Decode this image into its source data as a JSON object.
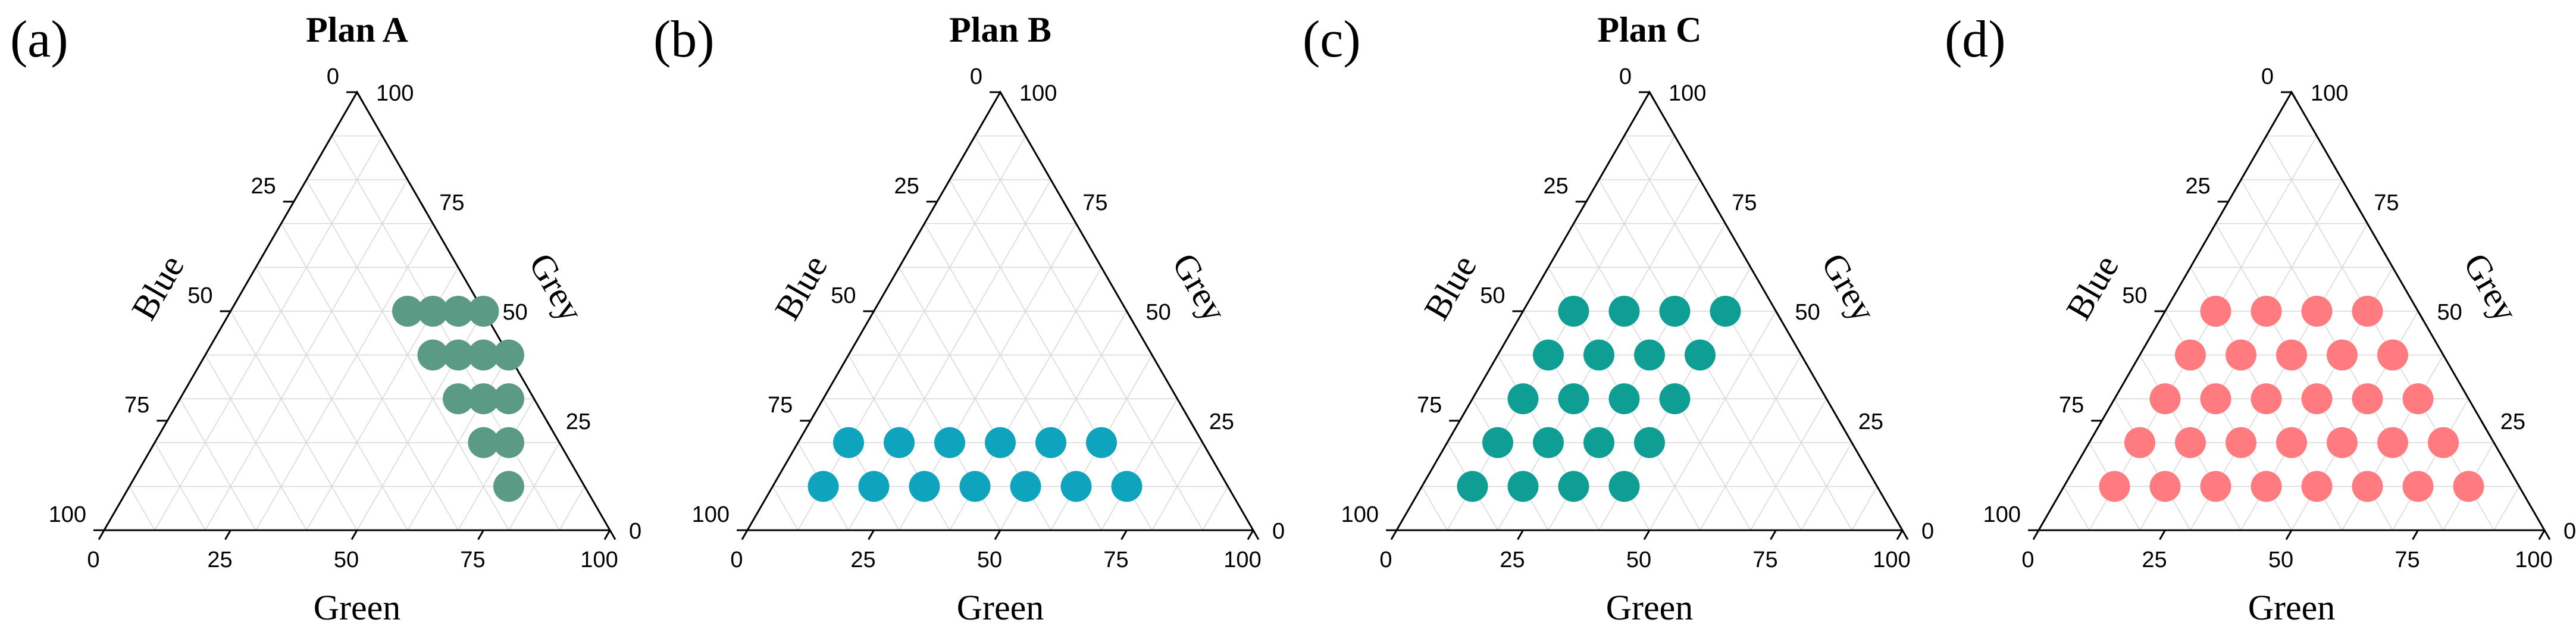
{
  "chart_data": [
    {
      "type": "scatter",
      "subtype": "ternary",
      "panel_label": "(a)",
      "title": "Plan A",
      "axes": {
        "bottom": "Green",
        "left": "Blue",
        "right": "Grey"
      },
      "ticks": [
        0,
        25,
        50,
        75,
        100
      ],
      "grid": true,
      "marker_color": "#5B9A85",
      "points": [
        {
          "green": 50,
          "blue": 0,
          "grey": 50
        },
        {
          "green": 60,
          "blue": 0,
          "grey": 40
        },
        {
          "green": 45,
          "blue": 5,
          "grey": 50
        },
        {
          "green": 55,
          "blue": 5,
          "grey": 40
        },
        {
          "green": 65,
          "blue": 5,
          "grey": 30
        },
        {
          "green": 40,
          "blue": 10,
          "grey": 50
        },
        {
          "green": 50,
          "blue": 10,
          "grey": 40
        },
        {
          "green": 60,
          "blue": 10,
          "grey": 30
        },
        {
          "green": 70,
          "blue": 10,
          "grey": 20
        },
        {
          "green": 35,
          "blue": 15,
          "grey": 50
        },
        {
          "green": 45,
          "blue": 15,
          "grey": 40
        },
        {
          "green": 55,
          "blue": 15,
          "grey": 30
        },
        {
          "green": 65,
          "blue": 15,
          "grey": 20
        },
        {
          "green": 75,
          "blue": 15,
          "grey": 10
        }
      ]
    },
    {
      "type": "scatter",
      "subtype": "ternary",
      "panel_label": "(b)",
      "title": "Plan B",
      "axes": {
        "bottom": "Green",
        "left": "Blue",
        "right": "Grey"
      },
      "ticks": [
        0,
        25,
        50,
        75,
        100
      ],
      "grid": true,
      "marker_color": "#0FA4BE",
      "points": [
        {
          "green": 10,
          "blue": 70,
          "grey": 20
        },
        {
          "green": 20,
          "blue": 60,
          "grey": 20
        },
        {
          "green": 30,
          "blue": 50,
          "grey": 20
        },
        {
          "green": 40,
          "blue": 40,
          "grey": 20
        },
        {
          "green": 50,
          "blue": 30,
          "grey": 20
        },
        {
          "green": 60,
          "blue": 20,
          "grey": 20
        },
        {
          "green": 10,
          "blue": 80,
          "grey": 10
        },
        {
          "green": 20,
          "blue": 70,
          "grey": 10
        },
        {
          "green": 30,
          "blue": 60,
          "grey": 10
        },
        {
          "green": 40,
          "blue": 50,
          "grey": 10
        },
        {
          "green": 50,
          "blue": 40,
          "grey": 10
        },
        {
          "green": 60,
          "blue": 30,
          "grey": 10
        },
        {
          "green": 70,
          "blue": 20,
          "grey": 10
        }
      ]
    },
    {
      "type": "scatter",
      "subtype": "ternary",
      "panel_label": "(c)",
      "title": "Plan C",
      "axes": {
        "bottom": "Green",
        "left": "Blue",
        "right": "Grey"
      },
      "ticks": [
        0,
        25,
        50,
        75,
        100
      ],
      "grid": true,
      "marker_color": "#0E9E93",
      "points": [
        {
          "green": 10,
          "blue": 40,
          "grey": 50
        },
        {
          "green": 20,
          "blue": 30,
          "grey": 50
        },
        {
          "green": 30,
          "blue": 20,
          "grey": 50
        },
        {
          "green": 40,
          "blue": 10,
          "grey": 50
        },
        {
          "green": 10,
          "blue": 50,
          "grey": 40
        },
        {
          "green": 20,
          "blue": 40,
          "grey": 40
        },
        {
          "green": 30,
          "blue": 30,
          "grey": 40
        },
        {
          "green": 40,
          "blue": 20,
          "grey": 40
        },
        {
          "green": 10,
          "blue": 60,
          "grey": 30
        },
        {
          "green": 20,
          "blue": 50,
          "grey": 30
        },
        {
          "green": 30,
          "blue": 40,
          "grey": 30
        },
        {
          "green": 40,
          "blue": 30,
          "grey": 30
        },
        {
          "green": 10,
          "blue": 70,
          "grey": 20
        },
        {
          "green": 20,
          "blue": 60,
          "grey": 20
        },
        {
          "green": 30,
          "blue": 50,
          "grey": 20
        },
        {
          "green": 40,
          "blue": 40,
          "grey": 20
        },
        {
          "green": 10,
          "blue": 80,
          "grey": 10
        },
        {
          "green": 20,
          "blue": 70,
          "grey": 10
        },
        {
          "green": 30,
          "blue": 60,
          "grey": 10
        },
        {
          "green": 40,
          "blue": 50,
          "grey": 10
        }
      ]
    },
    {
      "type": "scatter",
      "subtype": "ternary",
      "panel_label": "(d)",
      "title": "",
      "axes": {
        "bottom": "Green",
        "left": "Blue",
        "right": "Grey"
      },
      "ticks": [
        0,
        25,
        50,
        75,
        100
      ],
      "grid": true,
      "marker_color": "#FF7B7F",
      "points": [
        {
          "green": 10,
          "blue": 40,
          "grey": 50
        },
        {
          "green": 20,
          "blue": 30,
          "grey": 50
        },
        {
          "green": 30,
          "blue": 20,
          "grey": 50
        },
        {
          "green": 40,
          "blue": 10,
          "grey": 50
        },
        {
          "green": 10,
          "blue": 50,
          "grey": 40
        },
        {
          "green": 20,
          "blue": 40,
          "grey": 40
        },
        {
          "green": 30,
          "blue": 30,
          "grey": 40
        },
        {
          "green": 40,
          "blue": 20,
          "grey": 40
        },
        {
          "green": 50,
          "blue": 10,
          "grey": 40
        },
        {
          "green": 10,
          "blue": 60,
          "grey": 30
        },
        {
          "green": 20,
          "blue": 50,
          "grey": 30
        },
        {
          "green": 30,
          "blue": 40,
          "grey": 30
        },
        {
          "green": 40,
          "blue": 30,
          "grey": 30
        },
        {
          "green": 50,
          "blue": 20,
          "grey": 30
        },
        {
          "green": 60,
          "blue": 10,
          "grey": 30
        },
        {
          "green": 10,
          "blue": 70,
          "grey": 20
        },
        {
          "green": 20,
          "blue": 60,
          "grey": 20
        },
        {
          "green": 30,
          "blue": 50,
          "grey": 20
        },
        {
          "green": 40,
          "blue": 40,
          "grey": 20
        },
        {
          "green": 50,
          "blue": 30,
          "grey": 20
        },
        {
          "green": 60,
          "blue": 20,
          "grey": 20
        },
        {
          "green": 70,
          "blue": 10,
          "grey": 20
        },
        {
          "green": 10,
          "blue": 80,
          "grey": 10
        },
        {
          "green": 20,
          "blue": 70,
          "grey": 10
        },
        {
          "green": 30,
          "blue": 60,
          "grey": 10
        },
        {
          "green": 40,
          "blue": 50,
          "grey": 10
        },
        {
          "green": 50,
          "blue": 40,
          "grey": 10
        },
        {
          "green": 60,
          "blue": 30,
          "grey": 10
        },
        {
          "green": 70,
          "blue": 20,
          "grey": 10
        },
        {
          "green": 80,
          "blue": 10,
          "grey": 10
        }
      ]
    }
  ]
}
